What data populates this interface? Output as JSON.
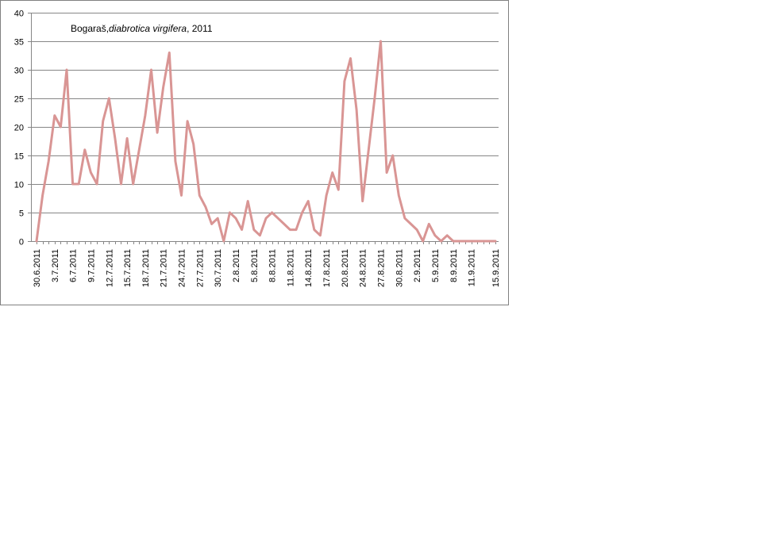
{
  "chart_data": {
    "type": "line",
    "title": {
      "prefix": "Bogaraš,",
      "species": "diabrotica virgifera",
      "suffix": ", 2011"
    },
    "xlabel": "",
    "ylabel": "",
    "ylim": [
      0,
      40
    ],
    "yticks": [
      0,
      5,
      10,
      15,
      20,
      25,
      30,
      35,
      40
    ],
    "grid": true,
    "legend": "none",
    "line_color": "#d99594",
    "x_tick_labels": [
      "30.6.2011",
      "3.7.2011",
      "6.7.2011",
      "9.7.2011",
      "12.7.2011",
      "15.7.2011",
      "18.7.2011",
      "21.7.2011",
      "24.7.2011",
      "27.7.2011",
      "30.7.2011",
      "2.8.2011",
      "5.8.2011",
      "8.8.2011",
      "11.8.2011",
      "14.8.2011",
      "17.8.2011",
      "20.8.2011",
      "24.8.2011",
      "27.8.2011",
      "30.8.2011",
      "2.9.2011",
      "5.9.2011",
      "8.9.2011",
      "11.9.2011",
      "15.9.2011"
    ],
    "series": [
      {
        "values": [
          0,
          8,
          14,
          22,
          20,
          30,
          10,
          10,
          16,
          12,
          10,
          21,
          25,
          18,
          10,
          18,
          10,
          16,
          22,
          30,
          19,
          27,
          33,
          14,
          8,
          21,
          17,
          8,
          6,
          3,
          4,
          0,
          5,
          4,
          2,
          7,
          2,
          1,
          4,
          5,
          4,
          3,
          2,
          2,
          5,
          7,
          2,
          1,
          8,
          12,
          9,
          28,
          32,
          23,
          7,
          16,
          25,
          35,
          12,
          15,
          8,
          4,
          3,
          2,
          0,
          3,
          1,
          0,
          1,
          0,
          0,
          0,
          0,
          0,
          0,
          0,
          0
        ]
      }
    ]
  }
}
